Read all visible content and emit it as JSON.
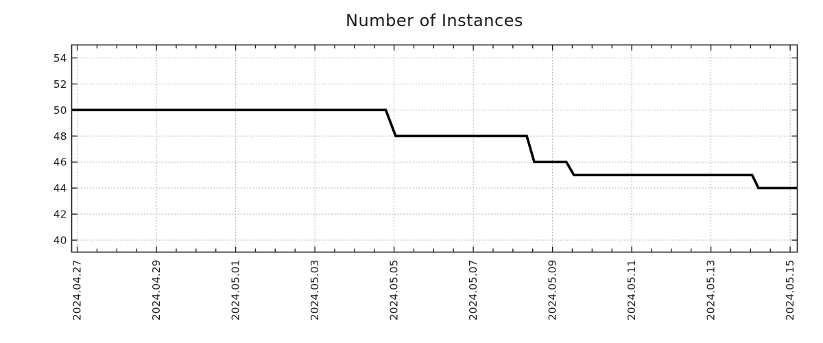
{
  "chart_data": {
    "type": "line",
    "title": "Number of Instances",
    "legend": null,
    "line_style": "step",
    "x_axis": {
      "tick_labels": [
        "2024.04.27",
        "2024.04.29",
        "2024.05.01",
        "2024.05.03",
        "2024.05.05",
        "2024.05.07",
        "2024.05.09",
        "2024.05.11",
        "2024.05.13",
        "2024.05.15"
      ],
      "tick_positions_days": [
        0,
        2,
        4,
        6,
        8,
        10,
        12,
        14,
        16,
        18
      ],
      "minor_tick_interval_days": 0.5,
      "xlim_days": [
        -0.14,
        18.18
      ]
    },
    "y_axis": {
      "tick_values": [
        40,
        42,
        44,
        46,
        48,
        50,
        52,
        54
      ],
      "ylim": [
        39.08,
        55.0
      ]
    },
    "grid": {
      "visible": true,
      "style": "dotted",
      "color": "#a9a9a9"
    },
    "axis_color": "#202020",
    "text_color": "#202020",
    "series": [
      {
        "color": "#000000",
        "stroke_width": 3.6,
        "points_day_value": [
          [
            -0.14,
            50
          ],
          [
            7.79,
            50
          ],
          [
            8.04,
            48
          ],
          [
            11.35,
            48
          ],
          [
            11.54,
            46
          ],
          [
            12.35,
            46
          ],
          [
            12.54,
            45
          ],
          [
            17.04,
            45
          ],
          [
            17.2,
            44
          ],
          [
            18.18,
            44
          ]
        ]
      }
    ],
    "values_summary": {
      "start_value": 50,
      "end_value": 44,
      "steps": [
        {
          "value": 50,
          "until_day_label": "2024.05.04"
        },
        {
          "value": 48,
          "from_day_label": "2024.05.05",
          "until_day_label": "2024.05.08"
        },
        {
          "value": 46,
          "from_day_label": "2024.05.08",
          "until_day_label": "2024.05.09"
        },
        {
          "value": 45,
          "from_day_label": "2024.05.09",
          "until_day_label": "2024.05.14"
        },
        {
          "value": 44,
          "from_day_label": "2024.05.14",
          "until_day_label": "2024.05.15"
        }
      ]
    }
  }
}
